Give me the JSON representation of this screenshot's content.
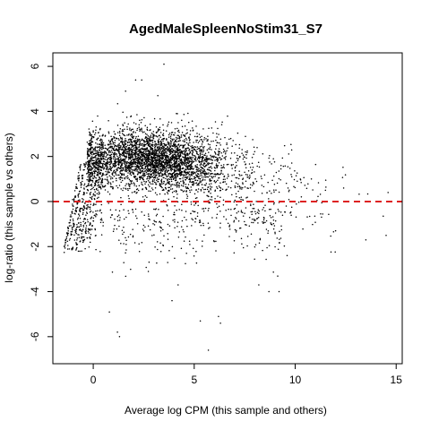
{
  "chart_data": {
    "type": "scatter",
    "title": "AgedMaleSpleenNoStim31_S7",
    "xlabel": "Average log CPM (this sample and others)",
    "ylabel": "log-ratio (this sample vs others)",
    "xlim": [
      -2.0,
      15.3
    ],
    "ylim": [
      -7.2,
      6.6
    ],
    "x_ticks": [
      0,
      5,
      10,
      15
    ],
    "y_ticks": [
      -6,
      -4,
      -2,
      0,
      2,
      4,
      6
    ],
    "reference_line": {
      "y": 0,
      "color": "#dd2222",
      "style": "dashed"
    },
    "point_color": "#000000",
    "grid": false,
    "legend": "none",
    "outlier_points": [
      {
        "x": 3.5,
        "y": 6.1
      },
      {
        "x": 2.1,
        "y": 5.4
      },
      {
        "x": 2.4,
        "y": 5.4
      },
      {
        "x": 1.6,
        "y": 4.9
      },
      {
        "x": 3.2,
        "y": 4.7
      },
      {
        "x": 0.8,
        "y": -4.9
      },
      {
        "x": 1.2,
        "y": -5.8
      },
      {
        "x": 1.3,
        "y": -6.0
      },
      {
        "x": 3.9,
        "y": -4.4
      },
      {
        "x": 5.3,
        "y": -5.3
      },
      {
        "x": 6.2,
        "y": -5.1
      },
      {
        "x": 6.3,
        "y": -5.4
      },
      {
        "x": 5.7,
        "y": -6.6
      },
      {
        "x": 4.2,
        "y": -3.7
      },
      {
        "x": 8.7,
        "y": -4.0
      },
      {
        "x": 9.2,
        "y": -4.0
      },
      {
        "x": 8.2,
        "y": -3.7
      },
      {
        "x": 9.6,
        "y": -2.4
      },
      {
        "x": 14.6,
        "y": 0.4
      },
      {
        "x": 14.5,
        "y": -1.5
      },
      {
        "x": 13.5,
        "y": -1.7
      },
      {
        "x": 12.0,
        "y": -1.3
      },
      {
        "x": 12.4,
        "y": 0.6
      },
      {
        "x": 11.5,
        "y": 0.5
      },
      {
        "x": 10.8,
        "y": 1.0
      },
      {
        "x": 9.3,
        "y": 1.6
      },
      {
        "x": 9.8,
        "y": 1.2
      },
      {
        "x": 10.1,
        "y": 0.9
      }
    ]
  }
}
